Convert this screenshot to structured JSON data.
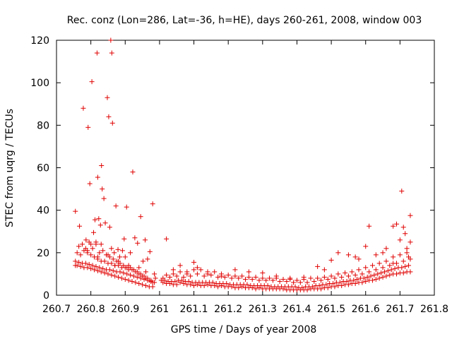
{
  "chart_data": {
    "type": "scatter",
    "title": "Rec. conz (Lon=286, Lat=-36, h=HE), days 260-261, 2008, window 003",
    "xlabel": "GPS time / Days of year 2008",
    "ylabel": "STEC from uqrg / TECUs",
    "xlim": [
      260.7,
      261.8
    ],
    "ylim": [
      0,
      120
    ],
    "grid": false,
    "legend": "none",
    "marker": "plus",
    "color": "#e00000",
    "x_ticks": [
      "260.7",
      "260.8",
      "260.9",
      "261",
      "261.1",
      "261.2",
      "261.3",
      "261.4",
      "261.5",
      "261.6",
      "261.7",
      "261.8"
    ],
    "y_ticks": [
      "0",
      "20",
      "40",
      "60",
      "80",
      "100",
      "120"
    ],
    "series": [
      {
        "x": [
          260.755,
          260.76,
          260.77,
          260.78,
          260.79,
          260.8,
          260.81,
          260.82,
          260.83,
          260.84,
          260.85,
          260.86,
          260.87,
          260.88,
          260.89,
          260.9,
          260.91,
          260.92,
          260.93,
          260.94,
          260.95,
          260.96,
          260.97,
          260.98,
          260.755,
          260.765,
          260.775,
          260.785,
          260.795,
          260.805,
          260.815,
          260.825,
          260.835,
          260.845,
          260.855,
          260.865,
          260.875,
          260.885,
          260.895,
          260.905,
          260.915,
          260.925,
          260.935,
          260.945,
          260.955,
          260.965,
          260.975,
          260.985,
          260.76,
          260.77,
          260.78,
          260.79,
          260.8,
          260.81,
          260.82,
          260.83,
          260.84,
          260.85,
          260.86,
          260.87,
          260.88,
          260.89,
          260.9,
          260.91,
          260.92,
          260.93,
          260.94,
          260.95,
          260.96,
          260.97,
          260.98,
          260.765,
          260.775,
          260.785,
          260.795,
          260.805,
          260.815,
          260.825,
          260.835,
          260.845,
          260.855,
          260.865,
          260.875,
          260.885,
          260.895,
          260.905,
          260.915,
          260.925,
          260.935,
          260.945,
          260.955,
          260.965,
          260.975,
          260.755,
          260.767,
          260.778,
          260.786,
          260.792,
          260.797,
          260.803,
          260.808,
          260.812,
          260.818,
          260.82,
          260.823,
          260.828,
          260.831,
          260.833,
          260.838,
          260.842,
          260.848,
          260.852,
          260.855,
          260.858,
          260.861,
          260.863,
          260.868,
          260.873,
          260.879,
          260.884,
          260.892,
          260.897,
          260.904,
          260.91,
          260.915,
          260.922,
          260.928,
          260.936,
          260.945,
          260.952,
          260.958,
          260.965,
          260.972,
          260.98,
          260.988,
          260.79,
          260.8,
          260.815,
          260.83,
          260.82,
          260.85,
          260.86,
          260.87,
          260.88,
          260.9,
          260.92,
          260.94,
          260.96,
          260.985,
          261.01,
          261.02,
          261.03,
          261.04,
          261.05,
          261.06,
          261.07,
          261.08,
          261.09,
          261.1,
          261.11,
          261.12,
          261.13,
          261.14,
          261.15,
          261.16,
          261.17,
          261.18,
          261.19,
          261.2,
          261.21,
          261.22,
          261.23,
          261.24,
          261.25,
          261.26,
          261.27,
          261.28,
          261.29,
          261.3,
          261.31,
          261.32,
          261.33,
          261.34,
          261.35,
          261.36,
          261.37,
          261.38,
          261.39,
          261.4,
          261.41,
          261.42,
          261.43,
          261.44,
          261.45,
          261.46,
          261.47,
          261.48,
          261.49,
          261.5,
          261.51,
          261.52,
          261.53,
          261.54,
          261.55,
          261.56,
          261.57,
          261.58,
          261.59,
          261.6,
          261.61,
          261.62,
          261.63,
          261.64,
          261.65,
          261.66,
          261.67,
          261.68,
          261.69,
          261.7,
          261.71,
          261.72,
          261.73,
          261.005,
          261.015,
          261.025,
          261.035,
          261.045,
          261.055,
          261.065,
          261.075,
          261.085,
          261.095,
          261.105,
          261.115,
          261.125,
          261.135,
          261.145,
          261.155,
          261.165,
          261.175,
          261.185,
          261.195,
          261.205,
          261.215,
          261.225,
          261.235,
          261.245,
          261.255,
          261.265,
          261.275,
          261.285,
          261.295,
          261.305,
          261.315,
          261.325,
          261.335,
          261.345,
          261.355,
          261.365,
          261.375,
          261.385,
          261.395,
          261.405,
          261.415,
          261.425,
          261.435,
          261.445,
          261.455,
          261.465,
          261.475,
          261.485,
          261.495,
          261.505,
          261.515,
          261.525,
          261.535,
          261.545,
          261.555,
          261.565,
          261.575,
          261.585,
          261.595,
          261.605,
          261.615,
          261.625,
          261.635,
          261.645,
          261.655,
          261.665,
          261.675,
          261.685,
          261.695,
          261.705,
          261.715,
          261.725,
          261.01,
          261.03,
          261.05,
          261.07,
          261.09,
          261.11,
          261.13,
          261.15,
          261.17,
          261.19,
          261.21,
          261.23,
          261.25,
          261.27,
          261.29,
          261.31,
          261.33,
          261.35,
          261.37,
          261.39,
          261.41,
          261.43,
          261.45,
          261.47,
          261.49,
          261.51,
          261.53,
          261.55,
          261.57,
          261.59,
          261.61,
          261.63,
          261.65,
          261.67,
          261.69,
          261.71,
          261.73,
          261.02,
          261.04,
          261.06,
          261.08,
          261.1,
          261.12,
          261.14,
          261.16,
          261.18,
          261.2,
          261.22,
          261.24,
          261.26,
          261.28,
          261.3,
          261.32,
          261.34,
          261.36,
          261.38,
          261.4,
          261.42,
          261.44,
          261.46,
          261.48,
          261.5,
          261.52,
          261.54,
          261.56,
          261.58,
          261.6,
          261.62,
          261.64,
          261.66,
          261.68,
          261.7,
          261.72,
          261.02,
          261.04,
          261.06,
          261.08,
          261.1,
          261.11,
          261.14,
          261.18,
          261.22,
          261.26,
          261.3,
          261.34,
          261.38,
          261.42,
          261.46,
          261.48,
          261.5,
          261.52,
          261.55,
          261.57,
          261.58,
          261.6,
          261.61,
          261.63,
          261.65,
          261.66,
          261.68,
          261.68,
          261.69,
          261.7,
          261.705,
          261.71,
          261.715,
          261.72,
          261.725,
          261.73,
          261.73
        ],
        "y": [
          14,
          14,
          13.5,
          13,
          13,
          12.5,
          12,
          11.5,
          11,
          10.5,
          10,
          9.5,
          9,
          8.5,
          8,
          7.5,
          7,
          6.5,
          6,
          5.5,
          5,
          4.5,
          4,
          4,
          16,
          15.5,
          15,
          15,
          14.5,
          14,
          13.5,
          13,
          12.5,
          12,
          12,
          11.5,
          11,
          11,
          10.5,
          10,
          9.5,
          9,
          8.5,
          8,
          7.5,
          7,
          6.5,
          6,
          20,
          19,
          21,
          20,
          19,
          18,
          17,
          16,
          16,
          15,
          15,
          14,
          14,
          13,
          13,
          12,
          12,
          11,
          10,
          9,
          8,
          7,
          6,
          23,
          24,
          22,
          25,
          22,
          24,
          20,
          21,
          19,
          18,
          17,
          16,
          15,
          14,
          13,
          13,
          12,
          11,
          10,
          9,
          8,
          7,
          39.5,
          32.5,
          88,
          26,
          79,
          52.5,
          100.5,
          29.5,
          35.5,
          114,
          55.5,
          36,
          33,
          61,
          50,
          45.5,
          34,
          93,
          84,
          32,
          120,
          114,
          81,
          20,
          42,
          21.5,
          18,
          21,
          26.5,
          41.5,
          14,
          20,
          58,
          27,
          24.5,
          37,
          16,
          26,
          17,
          20.5,
          43,
          8,
          21,
          24,
          25,
          24,
          18,
          19,
          22,
          14,
          16,
          18,
          12,
          13,
          11,
          10,
          6,
          5.5,
          5.5,
          5,
          5,
          6,
          5.5,
          5,
          5,
          4.5,
          5,
          4.5,
          4.5,
          5,
          4.5,
          4.5,
          4,
          4.5,
          4,
          4,
          4,
          3.5,
          3.5,
          4,
          3.5,
          3.5,
          3.5,
          3,
          3.5,
          3,
          3,
          3,
          3,
          3,
          3,
          3,
          2.5,
          2.5,
          2.5,
          2.5,
          2.5,
          2.5,
          2.5,
          3,
          3,
          3,
          3,
          3.5,
          3.5,
          4,
          4,
          4.5,
          4.5,
          5,
          5,
          5.5,
          5.5,
          6,
          6,
          6.5,
          7,
          7,
          7.5,
          8,
          8.5,
          9,
          9.5,
          10,
          10,
          10.5,
          10.5,
          11,
          11,
          7,
          7,
          6.5,
          6.5,
          6.5,
          7,
          7,
          6.5,
          6.5,
          6,
          6,
          6,
          6,
          6,
          6,
          6,
          5.5,
          5.5,
          5.5,
          5.5,
          5,
          5,
          5,
          5,
          5,
          5,
          4.5,
          4.5,
          4.5,
          4.5,
          4.5,
          4.5,
          4,
          4,
          4,
          4,
          4,
          4,
          4,
          4,
          3.5,
          3.5,
          4,
          4,
          4,
          4.5,
          4.5,
          5,
          5,
          5.5,
          5.5,
          6,
          6,
          6.5,
          6.5,
          7,
          7,
          7.5,
          8,
          8,
          8.5,
          9,
          9.5,
          10,
          10.5,
          11,
          11.5,
          12,
          12.5,
          13,
          13,
          13.5,
          14,
          8,
          8.5,
          9,
          8.5,
          9,
          10,
          9,
          9.5,
          8.5,
          8.5,
          8,
          8,
          7.5,
          7.5,
          7,
          7,
          7,
          6.5,
          6.5,
          6,
          6,
          6,
          6.5,
          7,
          7.5,
          8,
          8.5,
          9,
          9.5,
          10,
          11,
          12,
          13,
          14,
          15,
          16,
          17,
          9.5,
          10,
          11,
          11,
          12,
          12,
          10,
          11,
          10,
          9.5,
          9,
          9,
          8.5,
          8.5,
          8,
          8,
          8,
          7.5,
          7.5,
          7,
          7.5,
          8,
          8,
          8.5,
          9,
          10,
          10.5,
          11,
          12,
          13,
          14,
          15,
          16,
          18,
          19,
          20,
          26.5,
          12,
          14,
          10,
          15.5,
          13,
          11,
          9,
          12,
          11,
          10.5,
          9,
          8,
          8.5,
          13.5,
          12,
          16.5,
          20,
          19,
          18,
          17,
          23,
          32.5,
          19,
          20,
          22,
          15,
          32.5,
          33.5,
          26,
          49,
          32,
          29,
          22,
          18,
          37.5,
          25
        ]
      }
    ]
  }
}
